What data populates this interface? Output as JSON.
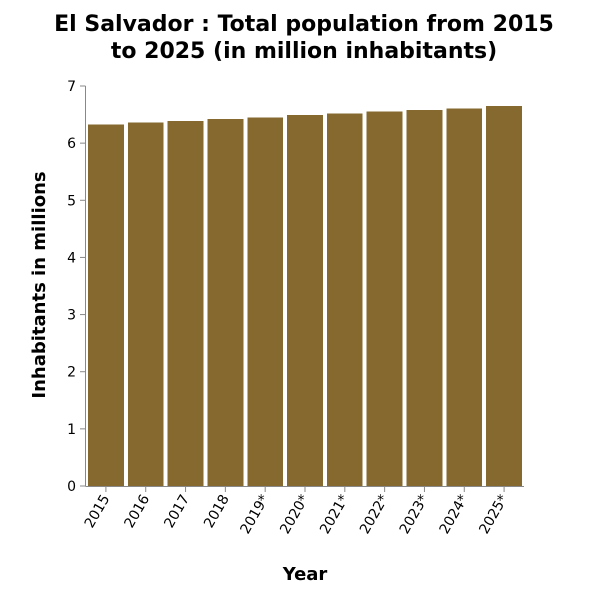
{
  "chart_data": {
    "type": "bar",
    "title": "El Salvador : Total population from 2015 to 2025 (in million inhabitants)",
    "title_lines": [
      "El Salvador : Total population from 2015",
      "to 2025 (in million inhabitants)"
    ],
    "xlabel": "Year",
    "ylabel": "Inhabitants in millions",
    "categories": [
      "2015",
      "2016",
      "2017",
      "2018",
      "2019*",
      "2020*",
      "2021*",
      "2022*",
      "2023*",
      "2024*",
      "2025*"
    ],
    "values": [
      6.33,
      6.36,
      6.39,
      6.42,
      6.45,
      6.49,
      6.52,
      6.55,
      6.58,
      6.61,
      6.65
    ],
    "ylim": [
      0,
      7
    ],
    "yticks": [
      0,
      1,
      2,
      3,
      4,
      5,
      6,
      7
    ],
    "grid": false,
    "bar_color": "#86692f"
  }
}
